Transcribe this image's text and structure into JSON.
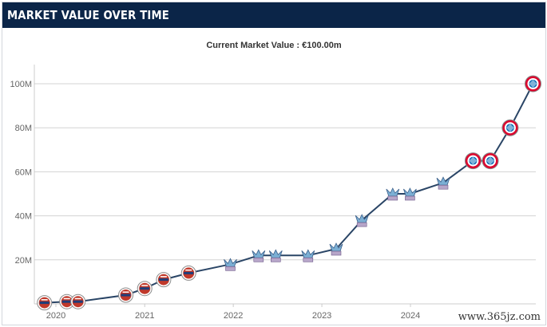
{
  "header": {
    "title": "MARKET VALUE OVER TIME"
  },
  "subtitle": "Current Market Value : €100.00m",
  "watermark": "www.365jz.com",
  "colors": {
    "header_bg": "#0b2548",
    "line": "#2a4566",
    "grid": "#d3d3d3",
    "reading": "#c0392b",
    "palace": "#7bafd4",
    "bayern": "#dc052d"
  },
  "chart_data": {
    "type": "line",
    "title": "",
    "xlabel": "",
    "ylabel": "",
    "x_ticks": [
      "2020",
      "2021",
      "2022",
      "2023",
      "2024"
    ],
    "y_ticks": [
      "20M",
      "40M",
      "60M",
      "80M",
      "100M"
    ],
    "ylim": [
      0,
      100
    ],
    "grid": true,
    "series": [
      {
        "points": [
          {
            "date": "2019-11-15",
            "value": 0.5,
            "club_icon": "reading-badge-icon"
          },
          {
            "date": "2020-02-15",
            "value": 1.0,
            "club_icon": "reading-badge-icon"
          },
          {
            "date": "2020-04-01",
            "value": 1.0,
            "club_icon": "reading-badge-icon"
          },
          {
            "date": "2020-10-15",
            "value": 4.0,
            "club_icon": "reading-badge-icon"
          },
          {
            "date": "2021-01-01",
            "value": 7.0,
            "club_icon": "reading-badge-icon"
          },
          {
            "date": "2021-03-20",
            "value": 11.0,
            "club_icon": "reading-badge-icon"
          },
          {
            "date": "2021-07-01",
            "value": 14.0,
            "club_icon": "reading-badge-icon"
          },
          {
            "date": "2021-12-20",
            "value": 18.0,
            "club_icon": "crystal-palace-badge-icon"
          },
          {
            "date": "2022-04-15",
            "value": 22.0,
            "club_icon": "crystal-palace-badge-icon"
          },
          {
            "date": "2022-06-25",
            "value": 22.0,
            "club_icon": "crystal-palace-badge-icon"
          },
          {
            "date": "2022-11-05",
            "value": 22.0,
            "club_icon": "crystal-palace-badge-icon"
          },
          {
            "date": "2023-03-01",
            "value": 25.0,
            "club_icon": "crystal-palace-badge-icon"
          },
          {
            "date": "2023-06-15",
            "value": 38.0,
            "club_icon": "crystal-palace-badge-icon"
          },
          {
            "date": "2023-10-20",
            "value": 50.0,
            "club_icon": "crystal-palace-badge-icon"
          },
          {
            "date": "2023-12-30",
            "value": 50.0,
            "club_icon": "crystal-palace-badge-icon"
          },
          {
            "date": "2024-05-15",
            "value": 55.0,
            "club_icon": "crystal-palace-badge-icon"
          },
          {
            "date": "2024-09-15",
            "value": 65.0,
            "club_icon": "bayern-munich-badge-icon"
          },
          {
            "date": "2024-11-25",
            "value": 65.0,
            "club_icon": "bayern-munich-badge-icon"
          },
          {
            "date": "2025-02-15",
            "value": 80.0,
            "club_icon": "bayern-munich-badge-icon"
          },
          {
            "date": "2025-05-20",
            "value": 100.0,
            "club_icon": "bayern-munich-badge-icon"
          }
        ]
      }
    ]
  }
}
